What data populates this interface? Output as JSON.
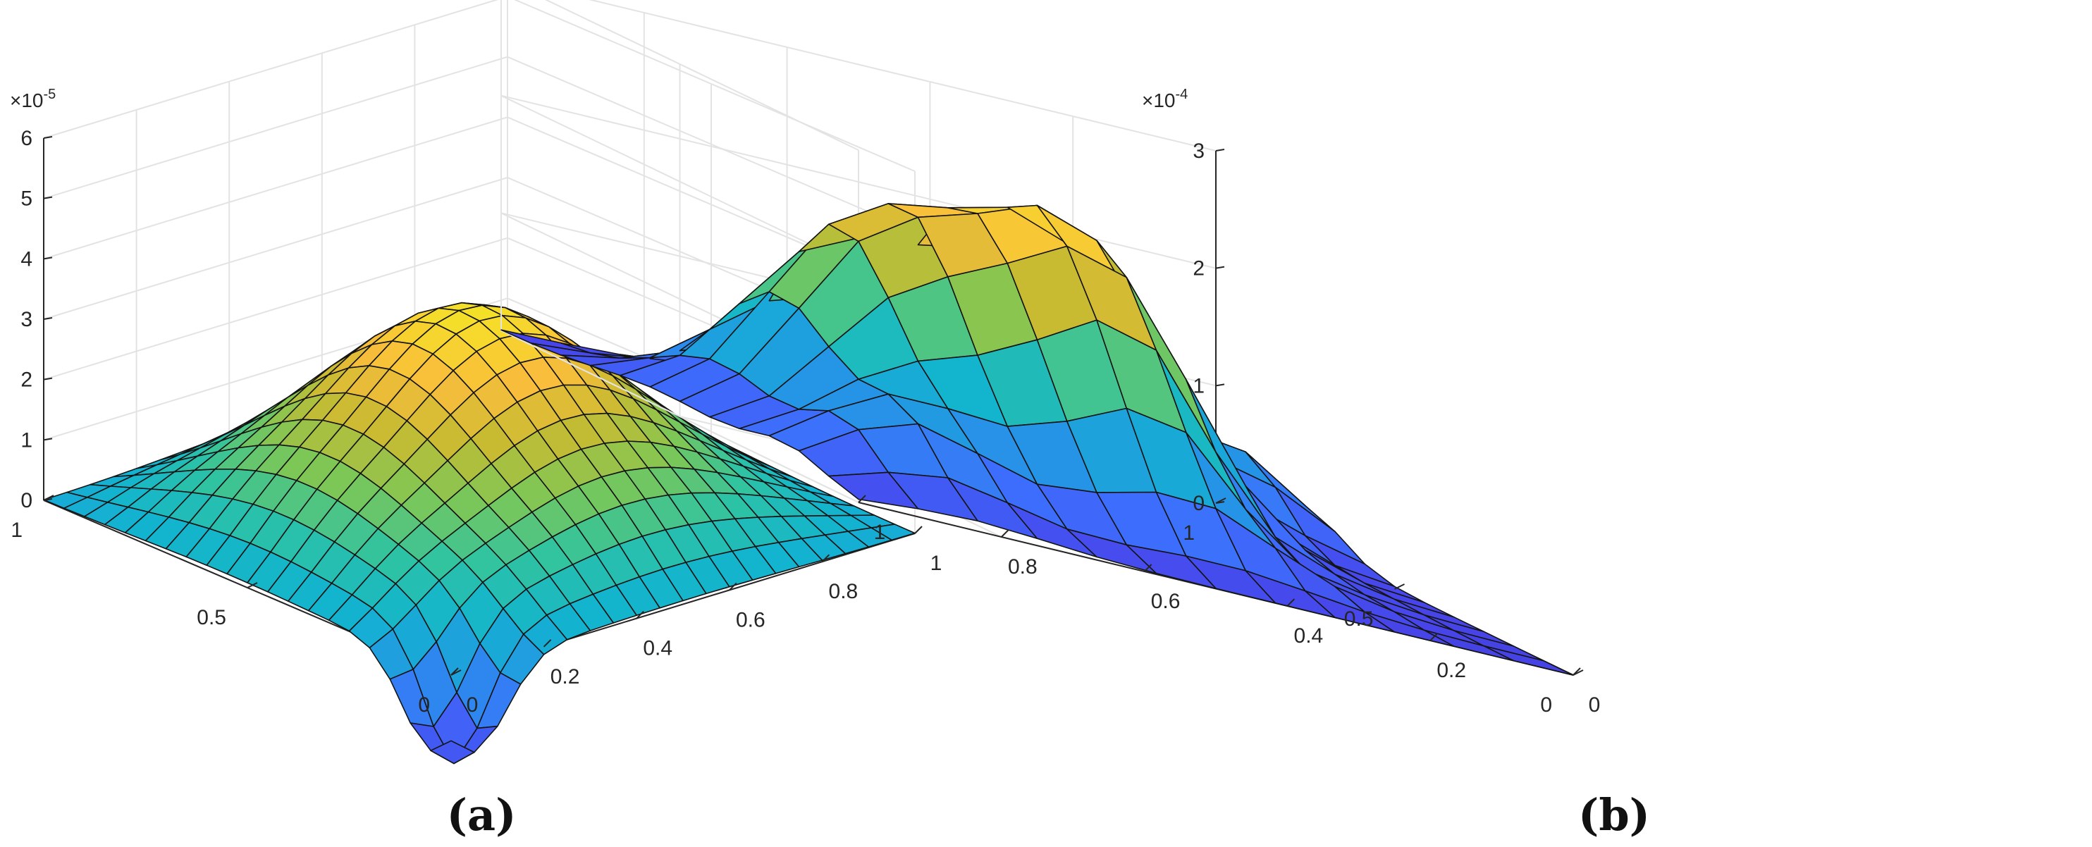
{
  "chart_data": [
    {
      "type": "surface",
      "panel_label": "(a)",
      "z_exponent_base": "×10",
      "z_exponent_power": "-5",
      "xlim": [
        0,
        1
      ],
      "ylim": [
        0,
        1
      ],
      "zlim": [
        0,
        6e-05
      ],
      "x_ticks": [
        "0",
        "0.2",
        "0.4",
        "0.6",
        "0.8",
        "1"
      ],
      "y_ticks": [
        "0",
        "0.5",
        "1"
      ],
      "z_ticks": [
        "0",
        "1",
        "2",
        "3",
        "4",
        "5",
        "6"
      ],
      "grid": true,
      "colormap": "parula",
      "grid_n": 21,
      "surface": "low-amplitude bumps along the edges with a central peak near 3.3e-5 and a dip below zero near the front",
      "peak_value": 3.3e-05
    },
    {
      "type": "surface",
      "panel_label": "(b)",
      "z_exponent_base": "×10",
      "z_exponent_power": "-4",
      "xlim": [
        0,
        1
      ],
      "ylim": [
        0,
        1
      ],
      "zlim": [
        0,
        0.0003
      ],
      "x_ticks": [
        "0",
        "0.2",
        "0.4",
        "0.6",
        "0.8",
        "1"
      ],
      "y_ticks": [
        "0",
        "0.5",
        "1"
      ],
      "z_ticks": [
        "0",
        "1",
        "2",
        "3"
      ],
      "grid": true,
      "colormap": "parula",
      "grid_n": 13,
      "surface": "two tall ridges peaking near 2.3e-4 with small lobes on the left and right sides",
      "peak_value": 0.000235
    }
  ],
  "colors": {
    "background": "#ffffff",
    "grid": "#e3e3e3",
    "axis": "#262626",
    "edge": "#141414",
    "parula": [
      "#3e26a8",
      "#4746eb",
      "#3d6ffd",
      "#2596e5",
      "#12b4cf",
      "#2fc3a2",
      "#7cc757",
      "#c7bb32",
      "#f9bd3b",
      "#f5e227"
    ]
  }
}
